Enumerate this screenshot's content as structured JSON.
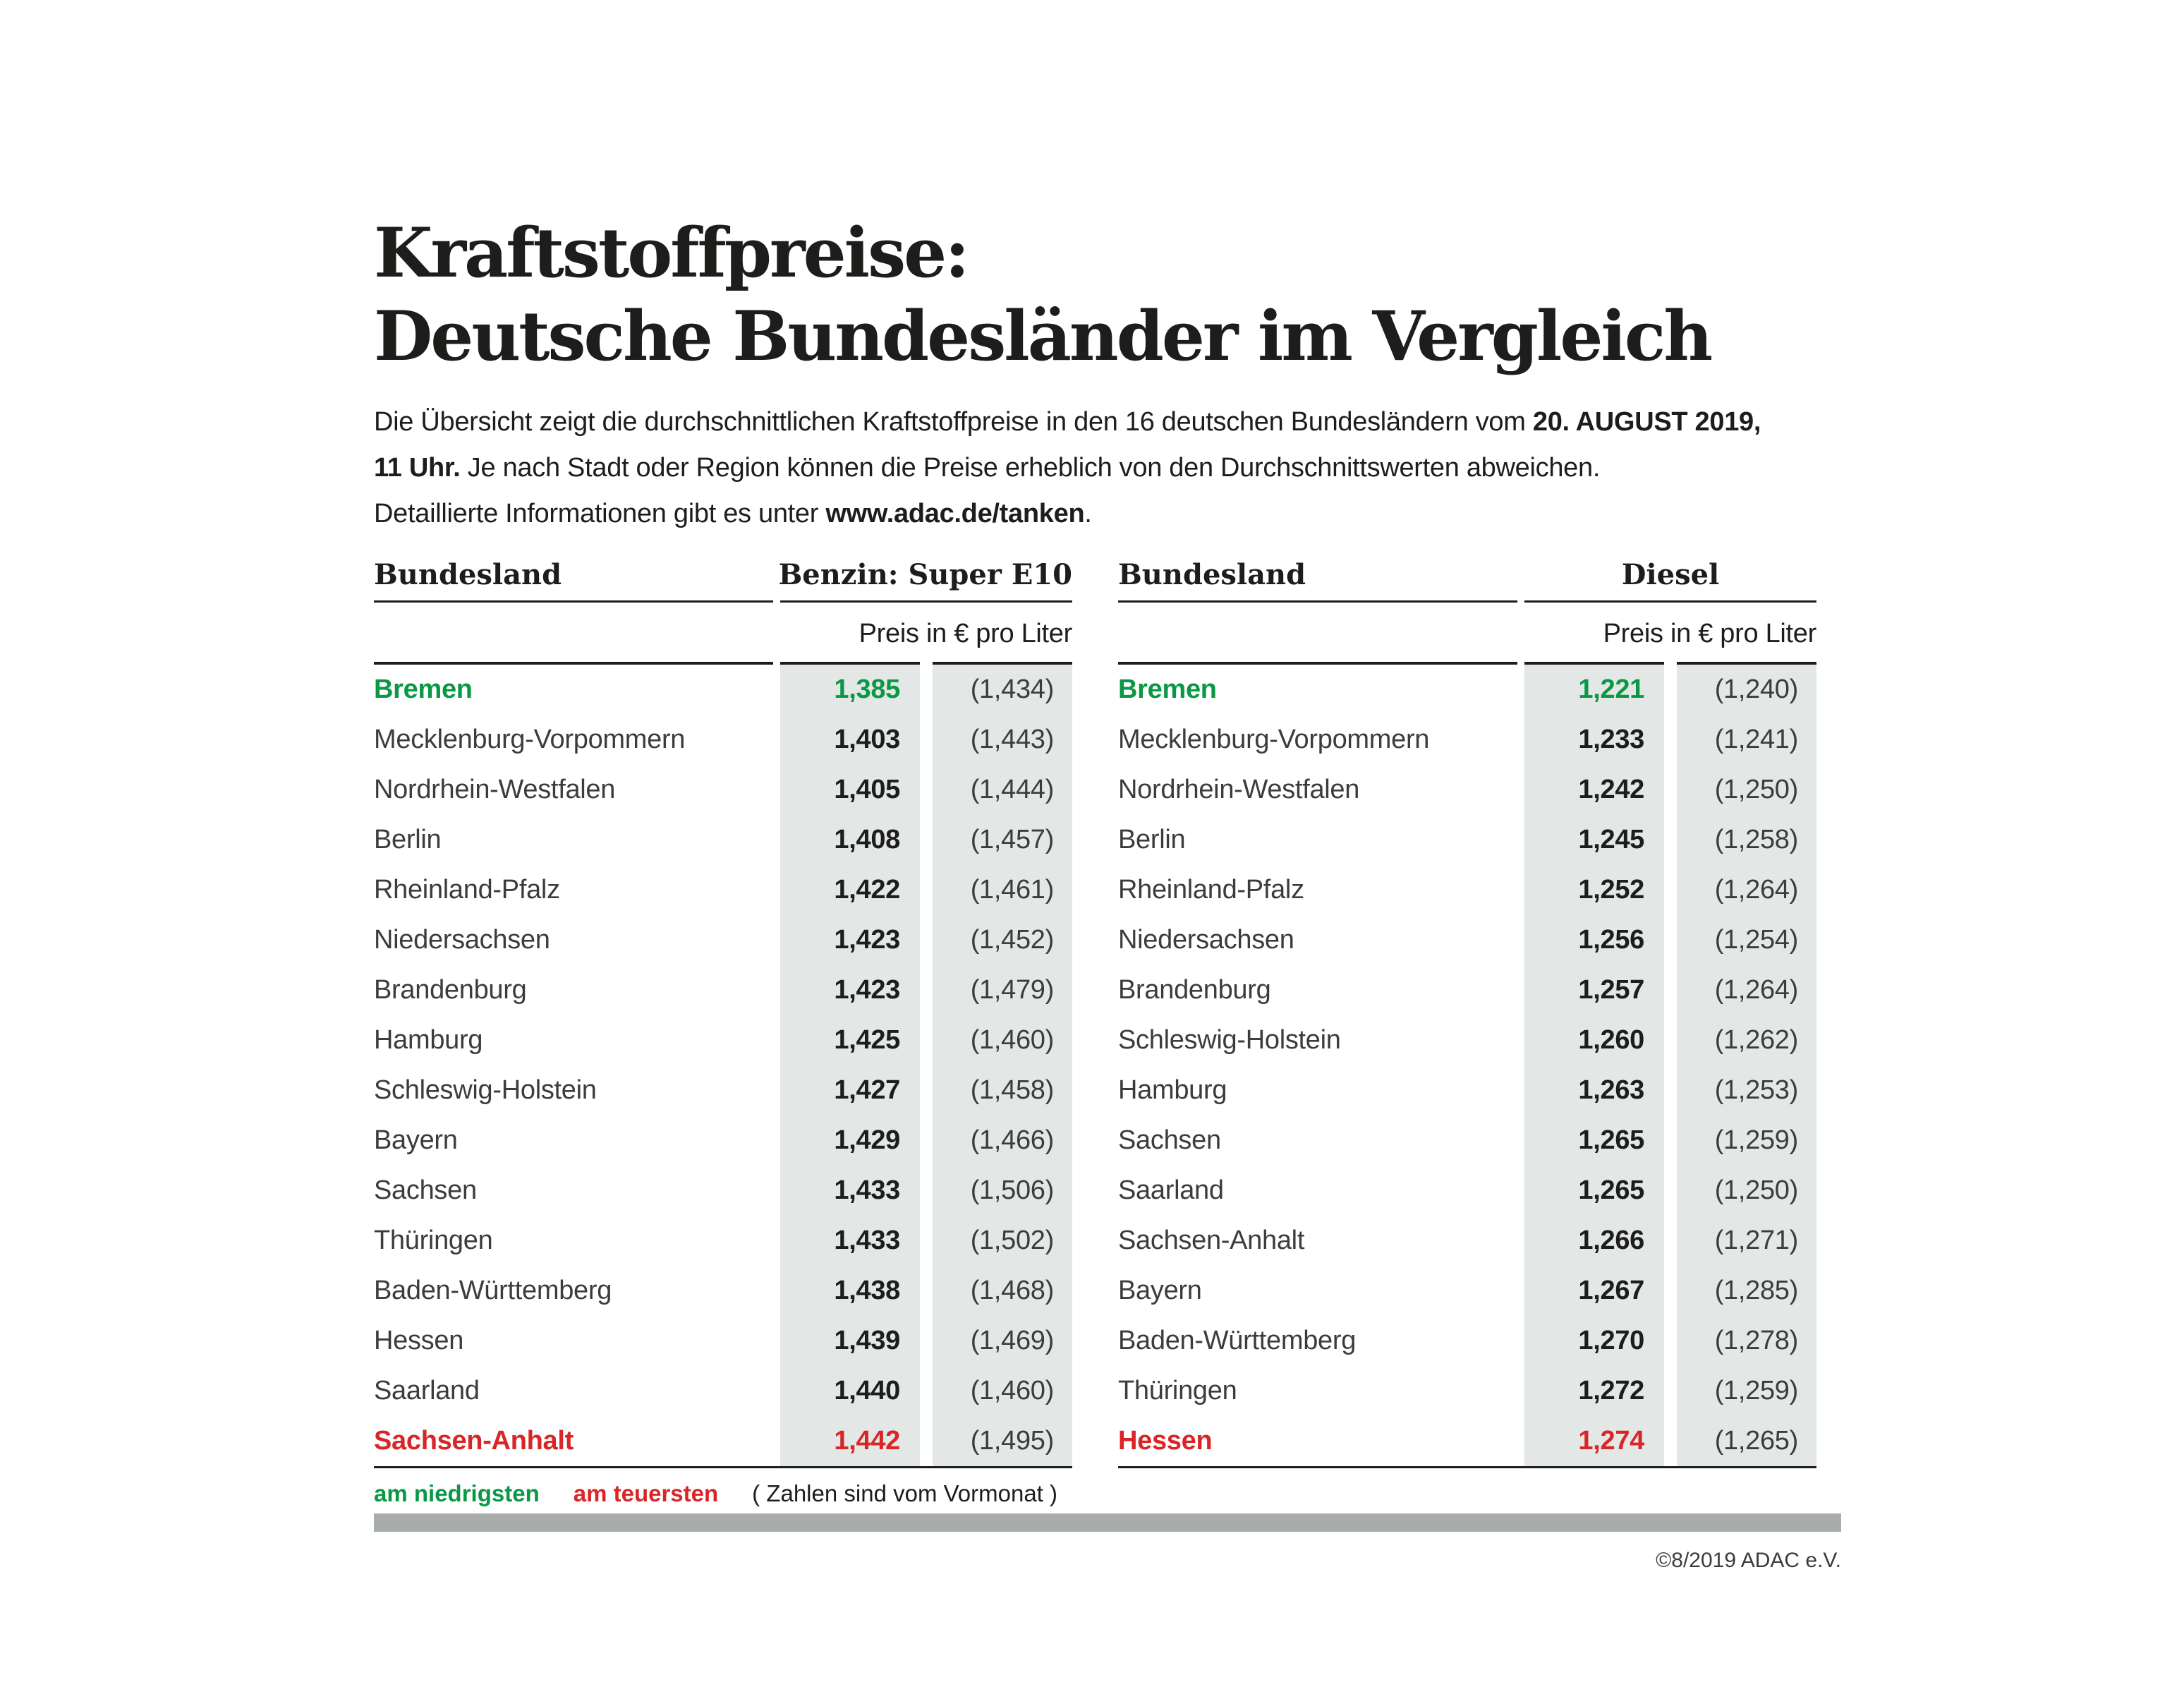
{
  "page": {
    "title_line1": "Kraftstoffpreise:",
    "title_line2": "Deutsche Bundesländer im Vergleich"
  },
  "intro": {
    "line1_regular": "Die Übersicht zeigt die durchschnittlichen Kraftstoffpreise in den 16 deutschen Bundesländern vom ",
    "line1_bold": "20. AUGUST 2019,",
    "line2_bold": "11 Uhr.",
    "line2_regular": " Je nach Stadt oder Region können die Preise erheblich von den Durchschnittswerten abweichen.",
    "line3_regular": "Detaillierte Informationen gibt es unter ",
    "line3_bold": "www.adac.de/tanken",
    "line3_suffix": "."
  },
  "chart_data": [
    {
      "type": "table",
      "title": "Benzin: Super E10",
      "column_header": "Bundesland",
      "subheader": "Preis in € pro Liter",
      "rows": [
        {
          "name": "Bremen",
          "value": "1,385",
          "prev": "(1,434)",
          "highlight": "lowest"
        },
        {
          "name": "Mecklenburg-Vorpommern",
          "value": "1,403",
          "prev": "(1,443)"
        },
        {
          "name": "Nordrhein-Westfalen",
          "value": "1,405",
          "prev": "(1,444)"
        },
        {
          "name": "Berlin",
          "value": "1,408",
          "prev": "(1,457)"
        },
        {
          "name": "Rheinland-Pfalz",
          "value": "1,422",
          "prev": "(1,461)"
        },
        {
          "name": "Niedersachsen",
          "value": "1,423",
          "prev": "(1,452)"
        },
        {
          "name": "Brandenburg",
          "value": "1,423",
          "prev": "(1,479)"
        },
        {
          "name": "Hamburg",
          "value": "1,425",
          "prev": "(1,460)"
        },
        {
          "name": "Schleswig-Holstein",
          "value": "1,427",
          "prev": "(1,458)"
        },
        {
          "name": "Bayern",
          "value": "1,429",
          "prev": "(1,466)"
        },
        {
          "name": "Sachsen",
          "value": "1,433",
          "prev": "(1,506)"
        },
        {
          "name": "Thüringen",
          "value": "1,433",
          "prev": "(1,502)"
        },
        {
          "name": "Baden-Württemberg",
          "value": "1,438",
          "prev": "(1,468)"
        },
        {
          "name": "Hessen",
          "value": "1,439",
          "prev": "(1,469)"
        },
        {
          "name": "Saarland",
          "value": "1,440",
          "prev": "(1,460)"
        },
        {
          "name": "Sachsen-Anhalt",
          "value": "1,442",
          "prev": "(1,495)",
          "highlight": "highest"
        }
      ]
    },
    {
      "type": "table",
      "title": "Diesel",
      "column_header": "Bundesland",
      "subheader": "Preis in € pro Liter",
      "rows": [
        {
          "name": "Bremen",
          "value": "1,221",
          "prev": "(1,240)",
          "highlight": "lowest"
        },
        {
          "name": "Mecklenburg-Vorpommern",
          "value": "1,233",
          "prev": "(1,241)"
        },
        {
          "name": "Nordrhein-Westfalen",
          "value": "1,242",
          "prev": "(1,250)"
        },
        {
          "name": "Berlin",
          "value": "1,245",
          "prev": "(1,258)"
        },
        {
          "name": "Rheinland-Pfalz",
          "value": "1,252",
          "prev": "(1,264)"
        },
        {
          "name": "Niedersachsen",
          "value": "1,256",
          "prev": "(1,254)"
        },
        {
          "name": "Brandenburg",
          "value": "1,257",
          "prev": "(1,264)"
        },
        {
          "name": "Schleswig-Holstein",
          "value": "1,260",
          "prev": "(1,262)"
        },
        {
          "name": "Hamburg",
          "value": "1,263",
          "prev": "(1,253)"
        },
        {
          "name": "Sachsen",
          "value": "1,265",
          "prev": "(1,259)"
        },
        {
          "name": "Saarland",
          "value": "1,265",
          "prev": "(1,250)"
        },
        {
          "name": "Sachsen-Anhalt",
          "value": "1,266",
          "prev": "(1,271)"
        },
        {
          "name": "Bayern",
          "value": "1,267",
          "prev": "(1,285)"
        },
        {
          "name": "Baden-Württemberg",
          "value": "1,270",
          "prev": "(1,278)"
        },
        {
          "name": "Thüringen",
          "value": "1,272",
          "prev": "(1,259)"
        },
        {
          "name": "Hessen",
          "value": "1,274",
          "prev": "(1,265)",
          "highlight": "highest"
        }
      ]
    }
  ],
  "legend": {
    "lowest_label": "am niedrigsten",
    "highest_label": "am teuersten",
    "note": "( Zahlen sind vom Vormonat )"
  },
  "footer": {
    "credit": "©8/2019 ADAC e.V."
  },
  "colors": {
    "lowest": "#0a9844",
    "highest": "#da2527",
    "price_column_background": "#e3e7e6",
    "footer_bar": "#a9acad",
    "heading_text": "#1d1d1b",
    "body_text": "#3c3c3b"
  }
}
